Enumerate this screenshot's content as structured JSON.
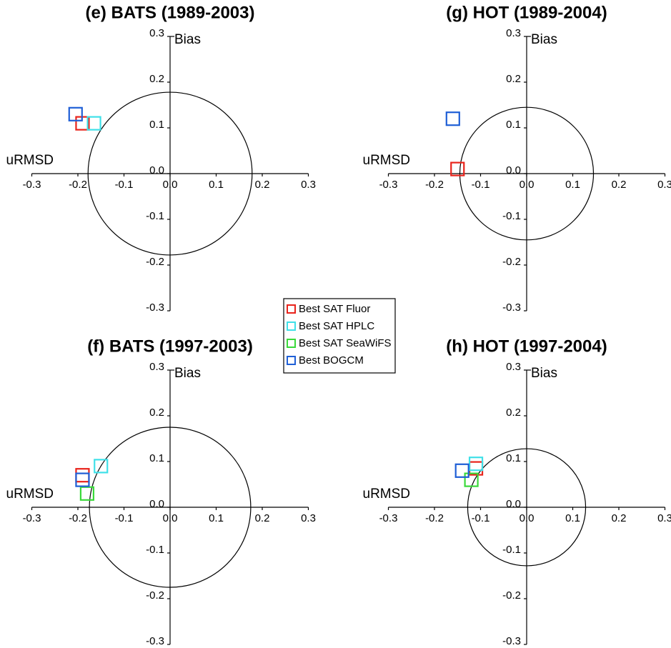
{
  "legend": {
    "series": [
      {
        "name": "Best SAT Fluor",
        "color": "#e8231b"
      },
      {
        "name": "Best SAT HPLC",
        "color": "#3fe0e8"
      },
      {
        "name": "Best SAT SeaWiFS",
        "color": "#3ad93a"
      },
      {
        "name": "Best BOGCM",
        "color": "#1f5fd6"
      }
    ]
  },
  "chart_data": [
    {
      "type": "scatter",
      "title": "(e) BATS (1989-2003)",
      "x_label": "uRMSD",
      "y_label": "Bias",
      "xlim": [
        -0.3,
        0.3
      ],
      "ylim": [
        -0.3,
        0.3
      ],
      "xticks": [
        -0.3,
        -0.2,
        -0.1,
        {
          "value": 0,
          "label": "0.0"
        },
        0.1,
        0.2,
        0.3
      ],
      "yticks": [
        -0.3,
        -0.2,
        -0.1,
        {
          "value": 0,
          "label": "0.0"
        },
        0.1,
        0.2,
        0.3
      ],
      "circle_radius": 0.178,
      "series": [
        {
          "x": [
            -0.19
          ],
          "values": [
            0.11
          ]
        },
        {
          "x": [
            -0.165
          ],
          "values": [
            0.11
          ]
        },
        {
          "x": [],
          "values": []
        },
        {
          "x": [
            -0.205
          ],
          "values": [
            0.13
          ]
        }
      ]
    },
    {
      "type": "scatter",
      "title": "(g) HOT (1989-2004)",
      "x_label": "uRMSD",
      "y_label": "Bias",
      "xlim": [
        -0.3,
        0.3
      ],
      "ylim": [
        -0.3,
        0.3
      ],
      "xticks": [
        -0.3,
        -0.2,
        -0.1,
        {
          "value": 0,
          "label": "0.0"
        },
        0.1,
        0.2,
        0.3
      ],
      "yticks": [
        -0.3,
        -0.2,
        -0.1,
        {
          "value": 0,
          "label": "0.0"
        },
        0.1,
        0.2,
        0.3
      ],
      "circle_radius": 0.145,
      "series": [
        {
          "x": [
            -0.15
          ],
          "values": [
            0.01
          ]
        },
        {
          "x": [],
          "values": []
        },
        {
          "x": [],
          "values": []
        },
        {
          "x": [
            -0.16
          ],
          "values": [
            0.12
          ]
        }
      ]
    },
    {
      "type": "scatter",
      "title": "(f) BATS (1997-2003)",
      "x_label": "uRMSD",
      "y_label": "Bias",
      "xlim": [
        -0.3,
        0.3
      ],
      "ylim": [
        -0.3,
        0.3
      ],
      "xticks": [
        -0.3,
        -0.2,
        -0.1,
        {
          "value": 0,
          "label": "0.0"
        },
        0.1,
        0.2,
        0.3
      ],
      "yticks": [
        -0.3,
        -0.2,
        -0.1,
        {
          "value": 0,
          "label": "0.0"
        },
        0.1,
        0.2,
        0.3
      ],
      "circle_radius": 0.175,
      "series": [
        {
          "x": [
            -0.19
          ],
          "values": [
            0.07
          ]
        },
        {
          "x": [
            -0.15
          ],
          "values": [
            0.09
          ]
        },
        {
          "x": [
            -0.18
          ],
          "values": [
            0.03
          ]
        },
        {
          "x": [
            -0.19
          ],
          "values": [
            0.06
          ]
        }
      ]
    },
    {
      "type": "scatter",
      "title": "(h) HOT (1997-2004)",
      "x_label": "uRMSD",
      "y_label": "Bias",
      "xlim": [
        -0.3,
        0.3
      ],
      "ylim": [
        -0.3,
        0.3
      ],
      "xticks": [
        -0.3,
        -0.2,
        -0.1,
        {
          "value": 0,
          "label": "0.0"
        },
        0.1,
        0.2,
        0.3
      ],
      "yticks": [
        -0.3,
        -0.2,
        -0.1,
        {
          "value": 0,
          "label": "0.0"
        },
        0.1,
        0.2,
        0.3
      ],
      "circle_radius": 0.128,
      "series": [
        {
          "x": [
            -0.11
          ],
          "values": [
            0.085
          ]
        },
        {
          "x": [
            -0.11
          ],
          "values": [
            0.095
          ]
        },
        {
          "x": [
            -0.12
          ],
          "values": [
            0.06
          ]
        },
        {
          "x": [
            -0.14
          ],
          "values": [
            0.08
          ]
        }
      ]
    }
  ]
}
